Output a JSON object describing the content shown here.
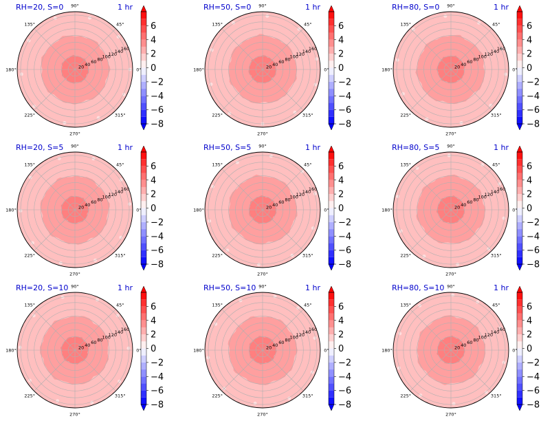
{
  "figure": {
    "panels": [
      {
        "title_left": "RH=20, S=0",
        "title_right": "1 hr"
      },
      {
        "title_left": "RH=50, S=0",
        "title_right": "1 hr"
      },
      {
        "title_left": "RH=80, S=0",
        "title_right": "1 hr"
      },
      {
        "title_left": "RH=20, S=5",
        "title_right": "1 hr"
      },
      {
        "title_left": "RH=50, S=5",
        "title_right": "1 hr"
      },
      {
        "title_left": "RH=80, S=5",
        "title_right": "1 hr"
      },
      {
        "title_left": "RH=20, S=10",
        "title_right": "1 hr"
      },
      {
        "title_left": "RH=50, S=10",
        "title_right": "1 hr"
      },
      {
        "title_left": "RH=80, S=10",
        "title_right": "1 hr"
      }
    ]
  },
  "chart_data": {
    "type": "polar_contourf",
    "layout": "3x3 grid",
    "angular_ticks": [
      "0°",
      "45°",
      "90°",
      "135°",
      "180°",
      "225°",
      "270°",
      "315°"
    ],
    "radial_ticks": [
      20,
      40,
      60,
      80,
      100,
      120,
      140,
      160
    ],
    "colorbar": {
      "colormap": "bwr",
      "range": [
        -8,
        8
      ],
      "levels": [
        -8,
        -7,
        -6,
        -5,
        -4,
        -3,
        -2,
        -1,
        0,
        1,
        2,
        3,
        4,
        5,
        6,
        7,
        8
      ],
      "tick_labels": [
        "6",
        "4",
        "2",
        "0",
        "−2",
        "−4",
        "−6",
        "−8"
      ],
      "extend": "both"
    },
    "field_description": "Positive anomaly highest near center, decreasing outward; 3 filled bands visible",
    "bands": [
      {
        "level": 3,
        "outer_radius": 40,
        "color": "#ff7f7f"
      },
      {
        "level": 2,
        "outer_radius": 100,
        "color": "#ff9f9f"
      },
      {
        "level": 1,
        "outer_radius": 170,
        "color": "#ffbfbf"
      }
    ],
    "panels": [
      {
        "rh": 20,
        "s": 0,
        "time": "1 hr"
      },
      {
        "rh": 50,
        "s": 0,
        "time": "1 hr"
      },
      {
        "rh": 80,
        "s": 0,
        "time": "1 hr"
      },
      {
        "rh": 20,
        "s": 5,
        "time": "1 hr"
      },
      {
        "rh": 50,
        "s": 5,
        "time": "1 hr"
      },
      {
        "rh": 80,
        "s": 5,
        "time": "1 hr"
      },
      {
        "rh": 20,
        "s": 10,
        "time": "1 hr"
      },
      {
        "rh": 50,
        "s": 10,
        "time": "1 hr"
      },
      {
        "rh": 80,
        "s": 10,
        "time": "1 hr"
      }
    ]
  }
}
